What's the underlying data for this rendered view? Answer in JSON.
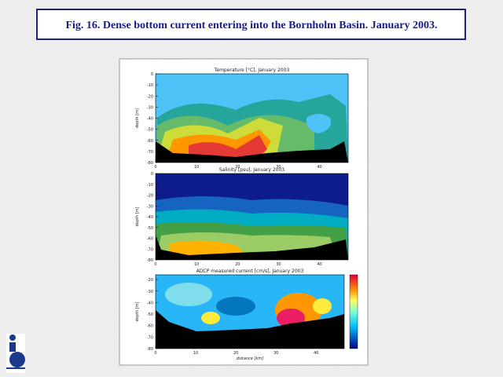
{
  "header": {
    "title": "Fig. 16. Dense bottom current entering into the Bornholm Basin. January 2003."
  },
  "panels": [
    {
      "title": "Temperature [°C], January 2003",
      "y_label": "depth [m]",
      "y_ticks": [
        "0",
        "-10",
        "-20",
        "-30",
        "-40",
        "-50",
        "-60",
        "-70",
        "-80"
      ],
      "x_ticks": [
        "0",
        "10",
        "20",
        "30",
        "40"
      ]
    },
    {
      "title": "Salinity [psu], January 2003",
      "y_label": "depth [m]",
      "y_ticks": [
        "0",
        "-10",
        "-20",
        "-30",
        "-40",
        "-50",
        "-60",
        "-70",
        "-80"
      ],
      "x_ticks": [
        "0",
        "10",
        "20",
        "30",
        "40"
      ]
    },
    {
      "title": "ADCP measured current [cm/s], January 2003",
      "y_label": "depth [m]",
      "y_ticks": [
        "-20",
        "-30",
        "-40",
        "-50",
        "-60",
        "-70",
        "-80"
      ],
      "x_ticks": [
        "0",
        "10",
        "20",
        "30",
        "40"
      ]
    }
  ],
  "x_label": "distance [km]"
}
